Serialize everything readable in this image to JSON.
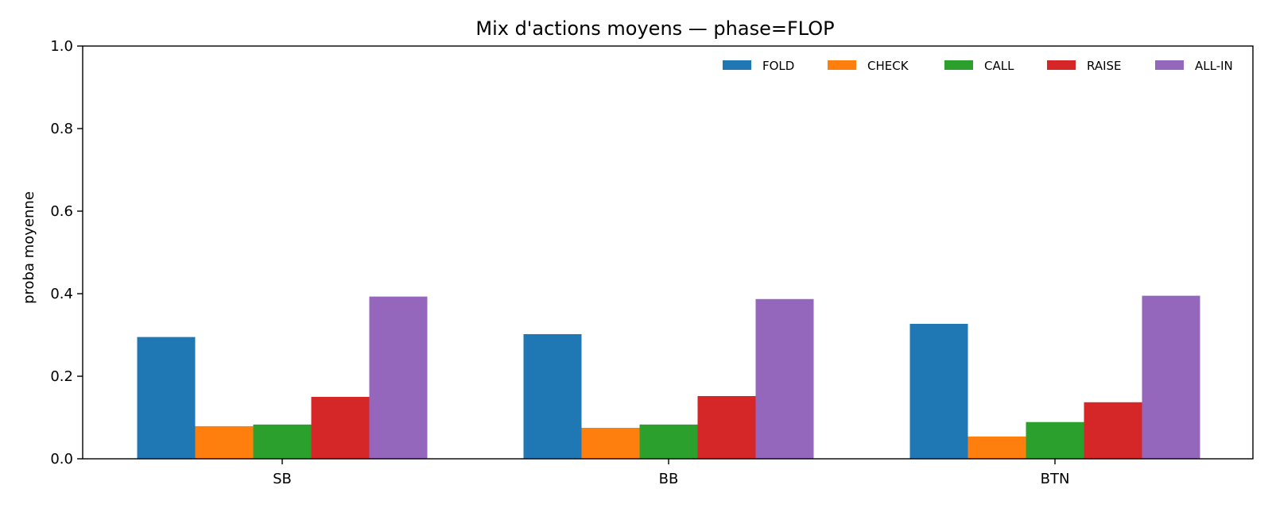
{
  "chart_data": {
    "type": "bar",
    "title": "Mix d'actions moyens — phase=FLOP",
    "xlabel": "",
    "ylabel": "proba moyenne",
    "categories": [
      "SB",
      "BB",
      "BTN"
    ],
    "ylim": [
      0,
      1.0
    ],
    "yticks": [
      "0.0",
      "0.2",
      "0.4",
      "0.6",
      "0.8",
      "1.0"
    ],
    "grid": false,
    "legend_position": "top-right",
    "series": [
      {
        "name": "FOLD",
        "color": "#1f77b4",
        "values": [
          0.295,
          0.302,
          0.327
        ]
      },
      {
        "name": "CHECK",
        "color": "#ff7f0e",
        "values": [
          0.079,
          0.075,
          0.054
        ]
      },
      {
        "name": "CALL",
        "color": "#2ca02c",
        "values": [
          0.083,
          0.083,
          0.089
        ]
      },
      {
        "name": "RAISE",
        "color": "#d62728",
        "values": [
          0.15,
          0.152,
          0.137
        ]
      },
      {
        "name": "ALL-IN",
        "color": "#9467bd",
        "values": [
          0.393,
          0.387,
          0.395
        ]
      }
    ]
  }
}
